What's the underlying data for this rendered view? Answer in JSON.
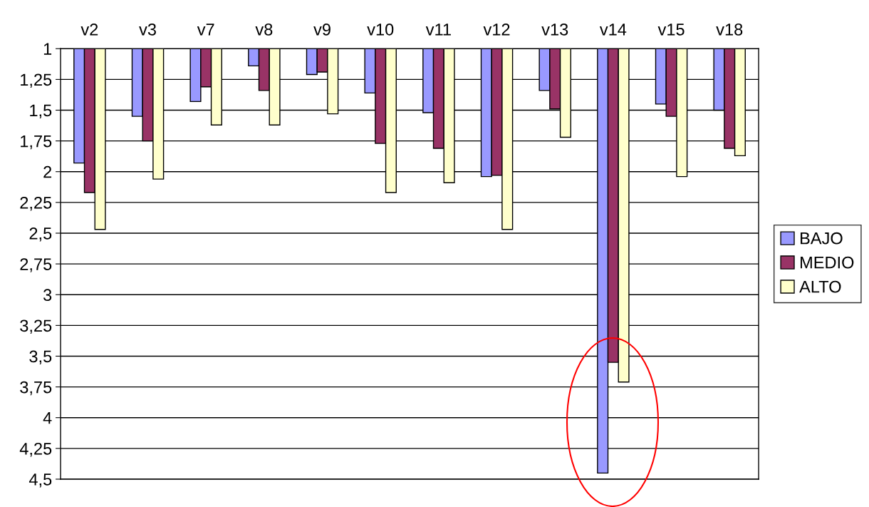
{
  "chart_data": {
    "type": "bar",
    "categories": [
      "v2",
      "v3",
      "v7",
      "v8",
      "v9",
      "v10",
      "v11",
      "v12",
      "v13",
      "v14",
      "v15",
      "v18"
    ],
    "series": [
      {
        "name": "BAJO",
        "color": "#9999ff",
        "values": [
          1.93,
          1.55,
          1.43,
          1.14,
          1.21,
          1.36,
          1.52,
          2.04,
          1.34,
          4.45,
          1.45,
          1.5
        ]
      },
      {
        "name": "MEDIO",
        "color": "#993366",
        "values": [
          2.17,
          1.75,
          1.31,
          1.34,
          1.19,
          1.77,
          1.81,
          2.03,
          1.49,
          3.55,
          1.55,
          1.81
        ]
      },
      {
        "name": "ALTO",
        "color": "#ffffcc",
        "values": [
          2.47,
          2.06,
          1.62,
          1.62,
          1.53,
          2.17,
          2.09,
          2.47,
          1.72,
          3.71,
          2.04,
          1.87
        ]
      }
    ],
    "ylim": [
      4.5,
      1
    ],
    "yticks": [
      {
        "value": 1,
        "label": "1"
      },
      {
        "value": 1.25,
        "label": "1,25"
      },
      {
        "value": 1.5,
        "label": "1,5"
      },
      {
        "value": 1.75,
        "label": "1,75"
      },
      {
        "value": 2,
        "label": "2"
      },
      {
        "value": 2.25,
        "label": "2,25"
      },
      {
        "value": 2.5,
        "label": "2,5"
      },
      {
        "value": 2.75,
        "label": "2,75"
      },
      {
        "value": 3,
        "label": "3"
      },
      {
        "value": 3.25,
        "label": "3,25"
      },
      {
        "value": 3.5,
        "label": "3,5"
      },
      {
        "value": 3.75,
        "label": "3,75"
      },
      {
        "value": 4,
        "label": "4"
      },
      {
        "value": 4.25,
        "label": "4,25"
      },
      {
        "value": 4.5,
        "label": "4,5"
      }
    ],
    "grid": "y",
    "legend": "right"
  }
}
